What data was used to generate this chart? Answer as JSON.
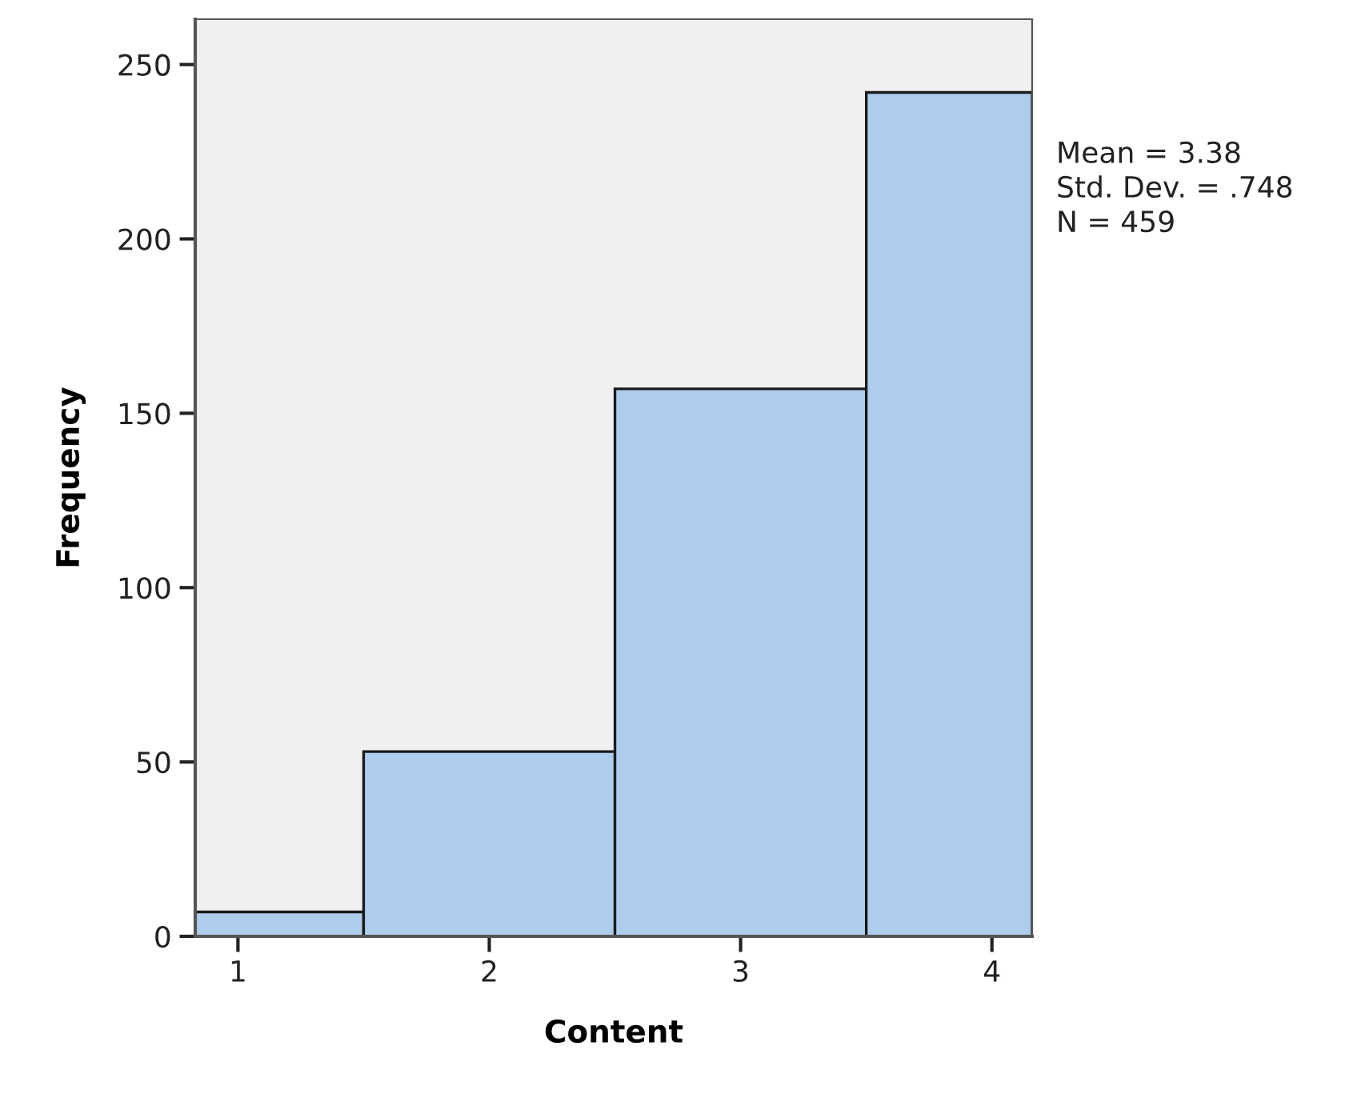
{
  "chart_data": {
    "type": "histogram",
    "xlabel": "Content",
    "ylabel": "Frequency",
    "bins": [
      0.83,
      1.5,
      2.5,
      3.5,
      4.16
    ],
    "values": [
      7,
      53,
      157,
      242
    ],
    "color": "#aecdec",
    "xlim": [
      0.83,
      4.16
    ],
    "xticks": [
      1,
      2,
      3,
      4
    ],
    "ylim": [
      0,
      263
    ],
    "yticks": [
      0,
      50,
      100,
      150,
      200,
      250
    ],
    "grid": false,
    "annotations": [
      "Mean = 3.38\nStd. Dev. = .748\nN = 459"
    ]
  }
}
